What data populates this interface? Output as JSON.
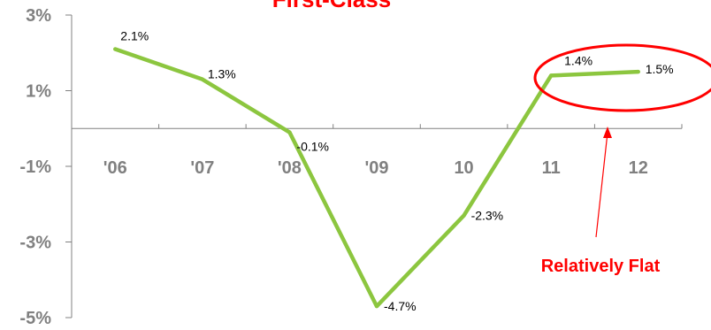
{
  "chart_data": {
    "type": "line",
    "title": "First-Class",
    "categories": [
      "'06",
      "'07",
      "'08",
      "'09",
      "10",
      "11",
      "12"
    ],
    "values": [
      2.1,
      1.3,
      -0.1,
      -4.7,
      -2.3,
      1.4,
      1.5
    ],
    "data_labels": [
      "2.1%",
      "1.3%",
      "-0.1%",
      "-4.7%",
      "-2.3%",
      "1.4%",
      "1.5%"
    ],
    "y_ticks": [
      "3%",
      "1%",
      "-1%",
      "-3%",
      "-5%"
    ],
    "ylim": [
      -5,
      3
    ],
    "grid": false,
    "xlabel": "",
    "ylabel": "",
    "annotation": "Relatively Flat",
    "colors": {
      "line": "#8cc63f",
      "title": "#ff0000",
      "annotation": "#ff0000",
      "axis": "#808080",
      "tick_text": "#808080"
    }
  }
}
